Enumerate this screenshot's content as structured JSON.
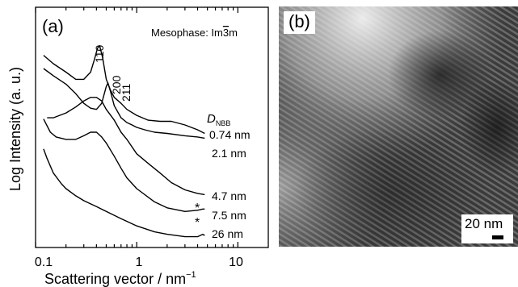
{
  "panel_a": {
    "label": "(a)",
    "mesophase_label": "Mesophase: Im",
    "mesophase_label_suffix": "3",
    "mesophase_label_end": "m",
    "dnbb_symbol": "D",
    "dnbb_subscript": "NBB",
    "peak_labels": [
      "110",
      "200",
      "211"
    ],
    "curve_labels": [
      "0.74 nm",
      "2.1 nm",
      "4.7 nm",
      "7.5 nm",
      "26 nm"
    ],
    "asterisks": [
      "*",
      "*"
    ],
    "ylabel": "Log Intensity (a. u.)",
    "xlabel": "Scattering vector / nm",
    "xlabel_sup": "−1",
    "xtick_labels": [
      "0.1",
      "1",
      "10"
    ]
  },
  "panel_b": {
    "label": "(b)",
    "scale_bar_label": "20 nm"
  },
  "chart_data": {
    "type": "line",
    "xlabel": "Scattering vector / nm−1",
    "ylabel": "Log Intensity (a. u.)",
    "xscale": "log",
    "xlim": [
      0.1,
      20
    ],
    "ylim": [
      0,
      1
    ],
    "yticks_shown": false,
    "series": [
      {
        "name": "0.74 nm",
        "x": [
          0.12,
          0.15,
          0.2,
          0.25,
          0.3,
          0.35,
          0.38,
          0.41,
          0.43,
          0.46,
          0.5,
          0.55,
          0.6,
          0.7,
          0.8,
          1.0,
          1.3,
          1.7,
          2.2,
          3.0,
          4.0,
          4.7
        ],
        "y": [
          0.8,
          0.765,
          0.73,
          0.7,
          0.7,
          0.73,
          0.78,
          0.83,
          0.84,
          0.79,
          0.7,
          0.655,
          0.625,
          0.6,
          0.575,
          0.55,
          0.53,
          0.525,
          0.525,
          0.51,
          0.49,
          0.475
        ]
      },
      {
        "name": "2.1 nm",
        "x": [
          0.12,
          0.15,
          0.2,
          0.25,
          0.3,
          0.35,
          0.4,
          0.45,
          0.5,
          0.52,
          0.55,
          0.6,
          0.7,
          0.8,
          0.9,
          1.0,
          1.2,
          1.5,
          2.0,
          3.0,
          4.0,
          4.7
        ],
        "y": [
          0.745,
          0.715,
          0.68,
          0.64,
          0.6,
          0.58,
          0.575,
          0.6,
          0.67,
          0.685,
          0.65,
          0.59,
          0.54,
          0.52,
          0.51,
          0.5,
          0.49,
          0.48,
          0.475,
          0.465,
          0.46,
          0.455
        ]
      },
      {
        "name": "4.7 nm",
        "x": [
          0.13,
          0.15,
          0.2,
          0.25,
          0.3,
          0.35,
          0.4,
          0.45,
          0.5,
          0.6,
          0.7,
          0.8,
          1.0,
          1.3,
          1.7,
          2.2,
          3.0,
          4.0,
          4.7
        ],
        "y": [
          0.54,
          0.54,
          0.56,
          0.585,
          0.61,
          0.625,
          0.625,
          0.61,
          0.575,
          0.53,
          0.48,
          0.45,
          0.39,
          0.35,
          0.31,
          0.27,
          0.24,
          0.225,
          0.22
        ]
      },
      {
        "name": "7.5 nm",
        "x": [
          0.12,
          0.14,
          0.16,
          0.2,
          0.25,
          0.3,
          0.35,
          0.4,
          0.45,
          0.5,
          0.6,
          0.7,
          0.8,
          1.0,
          1.5,
          2.0,
          3.0,
          4.0,
          4.5,
          4.7
        ],
        "y": [
          0.535,
          0.48,
          0.46,
          0.45,
          0.45,
          0.465,
          0.48,
          0.48,
          0.46,
          0.435,
          0.38,
          0.33,
          0.29,
          0.245,
          0.19,
          0.165,
          0.15,
          0.155,
          0.16,
          0.16
        ]
      },
      {
        "name": "26 nm",
        "x": [
          0.12,
          0.13,
          0.15,
          0.18,
          0.2,
          0.25,
          0.3,
          0.4,
          0.5,
          0.7,
          1.0,
          1.5,
          2.0,
          3.0,
          4.0,
          4.5,
          4.7
        ],
        "y": [
          0.41,
          0.37,
          0.31,
          0.265,
          0.245,
          0.215,
          0.195,
          0.17,
          0.15,
          0.12,
          0.09,
          0.065,
          0.055,
          0.045,
          0.045,
          0.055,
          0.05
        ]
      }
    ]
  }
}
